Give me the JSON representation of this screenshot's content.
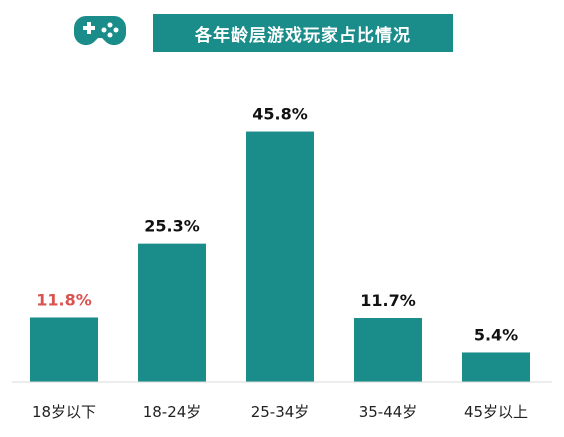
{
  "chart_data": {
    "type": "bar",
    "title": "各年龄层游戏玩家占比情况",
    "categories": [
      "18岁以下",
      "18-24岁",
      "25-34岁",
      "35-44岁",
      "45岁以上"
    ],
    "values": [
      11.8,
      25.3,
      45.8,
      11.7,
      5.4
    ],
    "data_labels": [
      "11.8%",
      "25.3%",
      "45.8%",
      "11.7%",
      "5.4%"
    ],
    "ylim": [
      0,
      50
    ],
    "grid": false,
    "legend": "none",
    "bar_color": "#1a8c8a",
    "highlight_label_color": "#d9534f",
    "label_color": "#111111",
    "title_bg": "#1a8c8a",
    "icon": "gamepad-icon"
  }
}
